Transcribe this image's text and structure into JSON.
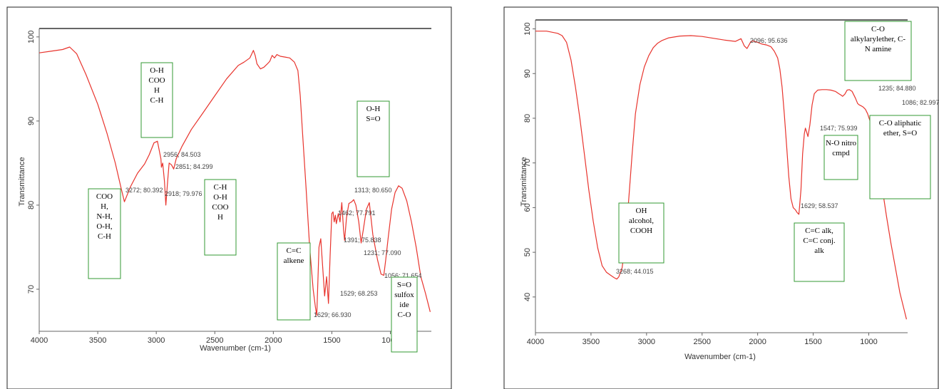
{
  "chart_data": [
    {
      "type": "line",
      "title": "",
      "xlabel": "Wavenumber (cm-1)",
      "ylabel": "Transmittance",
      "xlim": [
        4000,
        650
      ],
      "ylim": [
        65,
        101
      ],
      "x_ticks": [
        "4000",
        "3500",
        "3000",
        "2500",
        "2000",
        "1500",
        "1000"
      ],
      "y_ticks": [
        "70",
        "80",
        "90",
        "100"
      ],
      "y_tick_values": [
        70,
        80,
        90,
        100
      ],
      "line_color": "#e8342d",
      "series": [
        {
          "x": [
            4000,
            3900,
            3800,
            3740,
            3680,
            3600,
            3500,
            3420,
            3350,
            3300,
            3272,
            3220,
            3160,
            3100,
            3060,
            3020,
            2990,
            2960,
            2956,
            2945,
            2930,
            2918,
            2905,
            2890,
            2870,
            2851,
            2830,
            2780,
            2700,
            2600,
            2500,
            2400,
            2300,
            2250,
            2200,
            2170,
            2155,
            2140,
            2110,
            2080,
            2050,
            2030,
            2010,
            1990,
            1970,
            1940,
            1900,
            1860,
            1820,
            1790,
            1770,
            1750,
            1720,
            1690,
            1660,
            1640,
            1629,
            1610,
            1595,
            1580,
            1562,
            1545,
            1529,
            1515,
            1500,
            1490,
            1480,
            1470,
            1462,
            1445,
            1430,
            1415,
            1400,
            1391,
            1375,
            1355,
            1330,
            1313,
            1295,
            1270,
            1250,
            1231,
            1205,
            1180,
            1150,
            1110,
            1080,
            1056,
            1040,
            1020,
            990,
            960,
            930,
            900,
            860,
            820,
            780,
            740,
            700,
            660
          ],
          "y": [
            98.1,
            98.3,
            98.5,
            98.8,
            98.0,
            95.5,
            92.0,
            88.5,
            85.0,
            82.0,
            80.4,
            82.2,
            83.8,
            84.9,
            86.0,
            87.4,
            87.6,
            85.5,
            84.5,
            85.0,
            82.8,
            80.0,
            82.5,
            85.0,
            84.8,
            84.3,
            85.5,
            87.0,
            89.0,
            91.0,
            93.0,
            95.0,
            96.6,
            97.0,
            97.5,
            98.4,
            97.8,
            96.8,
            96.2,
            96.4,
            96.8,
            97.1,
            97.8,
            97.5,
            97.9,
            97.7,
            97.6,
            97.5,
            97.0,
            96.0,
            93.0,
            88.5,
            82.0,
            75.0,
            70.0,
            67.8,
            66.9,
            75.0,
            76.0,
            73.0,
            69.2,
            71.5,
            68.3,
            74.0,
            79.0,
            79.2,
            78.0,
            78.8,
            77.8,
            79.0,
            78.0,
            80.3,
            77.0,
            75.8,
            78.5,
            80.2,
            80.4,
            80.65,
            80.0,
            78.0,
            75.5,
            77.1,
            79.5,
            80.3,
            76.5,
            73.5,
            71.8,
            71.65,
            73.5,
            76.0,
            79.5,
            81.5,
            82.3,
            82.0,
            80.5,
            78.0,
            75.0,
            71.5,
            69.5,
            67.3
          ]
        }
      ],
      "point_labels": [
        {
          "x": 3272,
          "y": 80.392,
          "text": "3272; 80.392"
        },
        {
          "x": 2956,
          "y": 84.503,
          "text": "2956; 84.503"
        },
        {
          "x": 2851,
          "y": 84.299,
          "text": "2851; 84.299"
        },
        {
          "x": 2918,
          "y": 79.976,
          "text": "2918; 79.976"
        },
        {
          "x": 1313,
          "y": 80.65,
          "text": "1313; 80.650"
        },
        {
          "x": 1462,
          "y": 77.791,
          "text": "1462; 77.791"
        },
        {
          "x": 1391,
          "y": 75.838,
          "text": "1391; 75.838"
        },
        {
          "x": 1231,
          "y": 77.09,
          "text": "1231; 77.090"
        },
        {
          "x": 1056,
          "y": 71.654,
          "text": "1056; 71.654"
        },
        {
          "x": 1529,
          "y": 68.253,
          "text": "1529; 68.253"
        },
        {
          "x": 1629,
          "y": 66.93,
          "text": "1629; 66.930"
        }
      ],
      "annotations": [
        {
          "lines": [
            "COO",
            "H,",
            "N-H,",
            "O-H,",
            "C-H"
          ]
        },
        {
          "lines": [
            "O-H",
            "COO",
            "H",
            "C-H"
          ]
        },
        {
          "lines": [
            "C-H",
            "O-H",
            "COO",
            "H"
          ]
        },
        {
          "lines": [
            "C=C",
            "alkene"
          ]
        },
        {
          "lines": [
            "O-H",
            "S=O"
          ]
        },
        {
          "lines": [
            "S=O",
            "sulfox",
            "ide",
            "C-O"
          ]
        }
      ]
    },
    {
      "type": "line",
      "title": "",
      "xlabel": "Wavenumber (cm-1)",
      "ylabel": "Transmittance",
      "xlim": [
        4000,
        650
      ],
      "ylim": [
        32,
        102
      ],
      "x_ticks": [
        "4000",
        "3500",
        "3000",
        "2500",
        "2000",
        "1500",
        "1000"
      ],
      "y_ticks": [
        "40",
        "50",
        "60",
        "70",
        "80",
        "90",
        "100"
      ],
      "y_tick_values": [
        40,
        50,
        60,
        70,
        80,
        90,
        100
      ],
      "line_color": "#e8342d",
      "series": [
        {
          "x": [
            4000,
            3900,
            3800,
            3760,
            3720,
            3680,
            3640,
            3600,
            3560,
            3520,
            3480,
            3440,
            3400,
            3360,
            3320,
            3290,
            3268,
            3250,
            3220,
            3190,
            3160,
            3130,
            3100,
            3060,
            3020,
            2980,
            2940,
            2900,
            2860,
            2800,
            2700,
            2600,
            2500,
            2400,
            2300,
            2200,
            2150,
            2120,
            2096,
            2080,
            2060,
            2040,
            2000,
            1960,
            1920,
            1880,
            1850,
            1820,
            1800,
            1780,
            1760,
            1740,
            1720,
            1700,
            1680,
            1660,
            1645,
            1629,
            1610,
            1595,
            1580,
            1570,
            1560,
            1547,
            1530,
            1510,
            1490,
            1460,
            1420,
            1380,
            1340,
            1300,
            1270,
            1250,
            1235,
            1215,
            1195,
            1175,
            1150,
            1120,
            1100,
            1086,
            1070,
            1050,
            1030,
            1010,
            990,
            960,
            930,
            900,
            870,
            840,
            800,
            760,
            720,
            680,
            660
          ],
          "y": [
            99.5,
            99.5,
            99.0,
            98.5,
            97.0,
            93.0,
            87.0,
            80.0,
            72.0,
            64.0,
            57.0,
            51.0,
            47.0,
            45.5,
            44.8,
            44.3,
            44.0,
            44.5,
            46.5,
            52.0,
            62.0,
            72.0,
            81.0,
            87.5,
            91.5,
            94.0,
            95.8,
            96.8,
            97.4,
            98.0,
            98.4,
            98.5,
            98.3,
            97.9,
            97.5,
            97.2,
            97.8,
            96.2,
            95.6,
            96.3,
            97.2,
            97.3,
            97.0,
            96.6,
            96.4,
            96.0,
            95.0,
            93.5,
            91.0,
            87.0,
            81.0,
            74.0,
            67.0,
            62.0,
            60.0,
            59.5,
            58.9,
            58.5,
            64.0,
            72.0,
            76.5,
            77.8,
            77.0,
            75.9,
            78.5,
            83.0,
            85.5,
            86.3,
            86.4,
            86.4,
            86.3,
            86.0,
            85.5,
            85.2,
            84.9,
            85.4,
            86.3,
            86.4,
            86.0,
            84.5,
            83.3,
            83.0,
            82.8,
            82.5,
            82.0,
            81.0,
            79.5,
            76.5,
            72.5,
            68.0,
            63.0,
            58.0,
            52.0,
            46.5,
            41.0,
            37.0,
            35.0
          ]
        }
      ],
      "point_labels": [
        {
          "x": 2096,
          "y": 95.636,
          "text": "2096; 95.636"
        },
        {
          "x": 1235,
          "y": 84.88,
          "text": "1235; 84.880"
        },
        {
          "x": 1086,
          "y": 82.997,
          "text": "1086; 82.997"
        },
        {
          "x": 1547,
          "y": 75.939,
          "text": "1547; 75.939"
        },
        {
          "x": 1629,
          "y": 58.537,
          "text": "1629; 58.537"
        },
        {
          "x": 3268,
          "y": 44.015,
          "text": "3268; 44.015"
        }
      ],
      "annotations": [
        {
          "lines": [
            "C-O",
            "alkylarylether, C-",
            "N amine"
          ]
        },
        {
          "lines": [
            "N-O nitro",
            "cmpd"
          ]
        },
        {
          "lines": [
            "C-O aliphatic",
            "ether, S=O"
          ]
        },
        {
          "lines": [
            "OH",
            "alcohol,",
            "COOH"
          ]
        },
        {
          "lines": [
            "C=C alk,",
            "C=C conj.",
            "alk"
          ]
        }
      ]
    }
  ]
}
